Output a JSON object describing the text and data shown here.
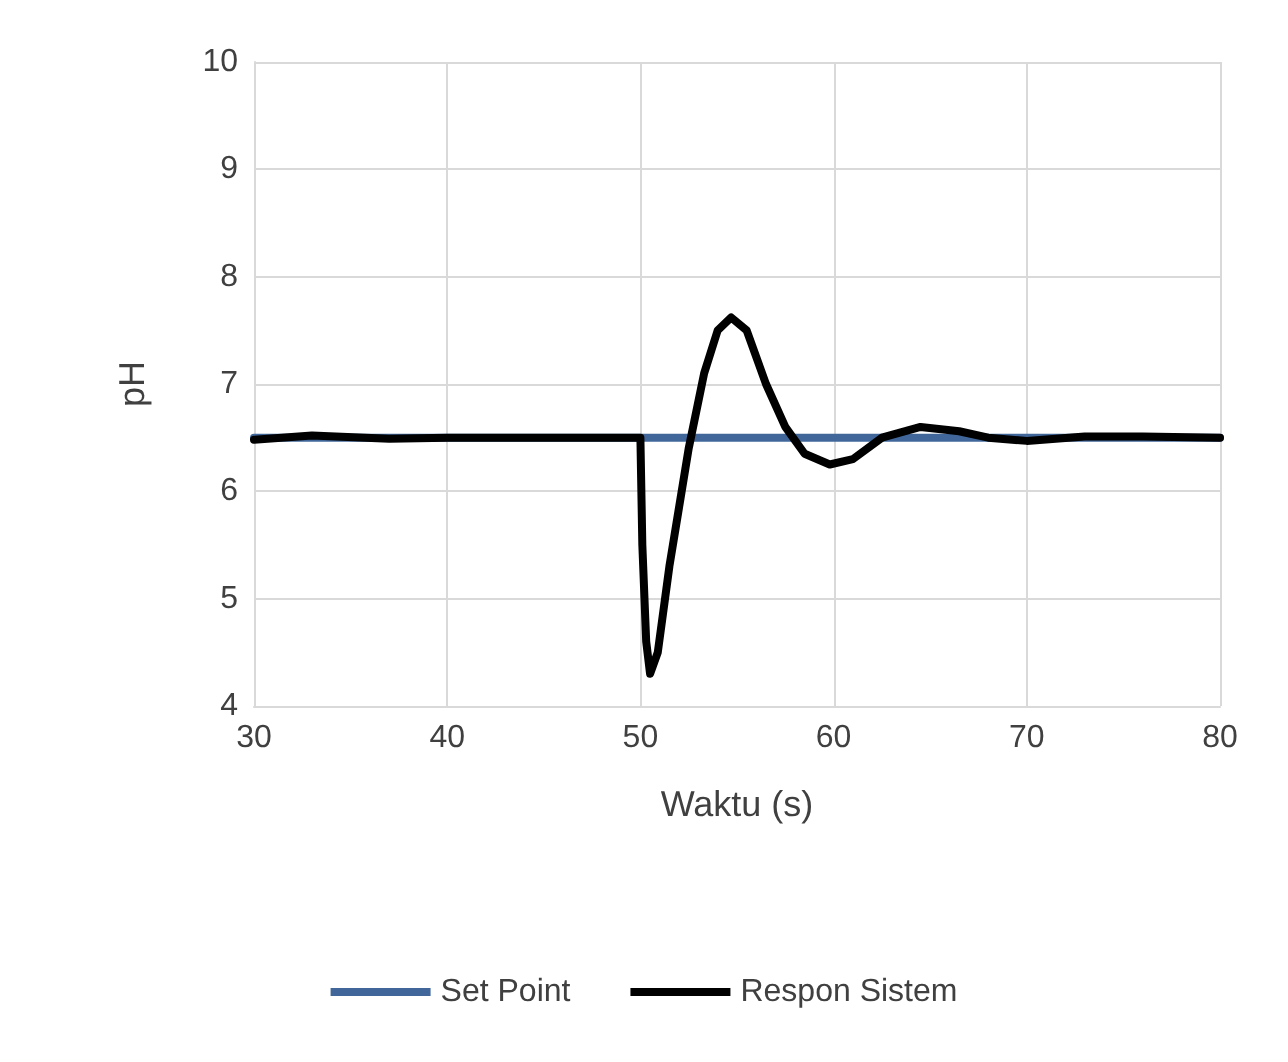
{
  "chart_data": {
    "type": "line",
    "xlabel": "Waktu (s)",
    "ylabel": "pH",
    "xlim": [
      30,
      80
    ],
    "xticks": [
      30,
      40,
      50,
      60,
      70,
      80
    ],
    "ylim": [
      4,
      10
    ],
    "yticks": [
      4,
      5,
      6,
      7,
      8,
      9,
      10
    ],
    "grid": true,
    "legend": "bottom",
    "marker": "none",
    "line_style": "solid",
    "series": [
      {
        "name": "Set Point",
        "color": "#41679a",
        "x": [
          30,
          80
        ],
        "values": [
          6.5,
          6.5
        ]
      },
      {
        "name": "Respon Sistem",
        "color": "#000000",
        "x": [
          30,
          33,
          37,
          40,
          50,
          50.1,
          50.3,
          50.5,
          50.9,
          51.5,
          52.5,
          53.3,
          54,
          54.7,
          55.5,
          56.5,
          57.5,
          58.5,
          59.8,
          61,
          62.5,
          64.5,
          66.5,
          68,
          70,
          73,
          76,
          80
        ],
        "values": [
          6.48,
          6.52,
          6.49,
          6.5,
          6.5,
          5.5,
          4.6,
          4.3,
          4.5,
          5.3,
          6.4,
          7.1,
          7.5,
          7.62,
          7.5,
          7.0,
          6.6,
          6.35,
          6.25,
          6.3,
          6.5,
          6.6,
          6.56,
          6.5,
          6.47,
          6.51,
          6.51,
          6.5
        ]
      }
    ]
  }
}
